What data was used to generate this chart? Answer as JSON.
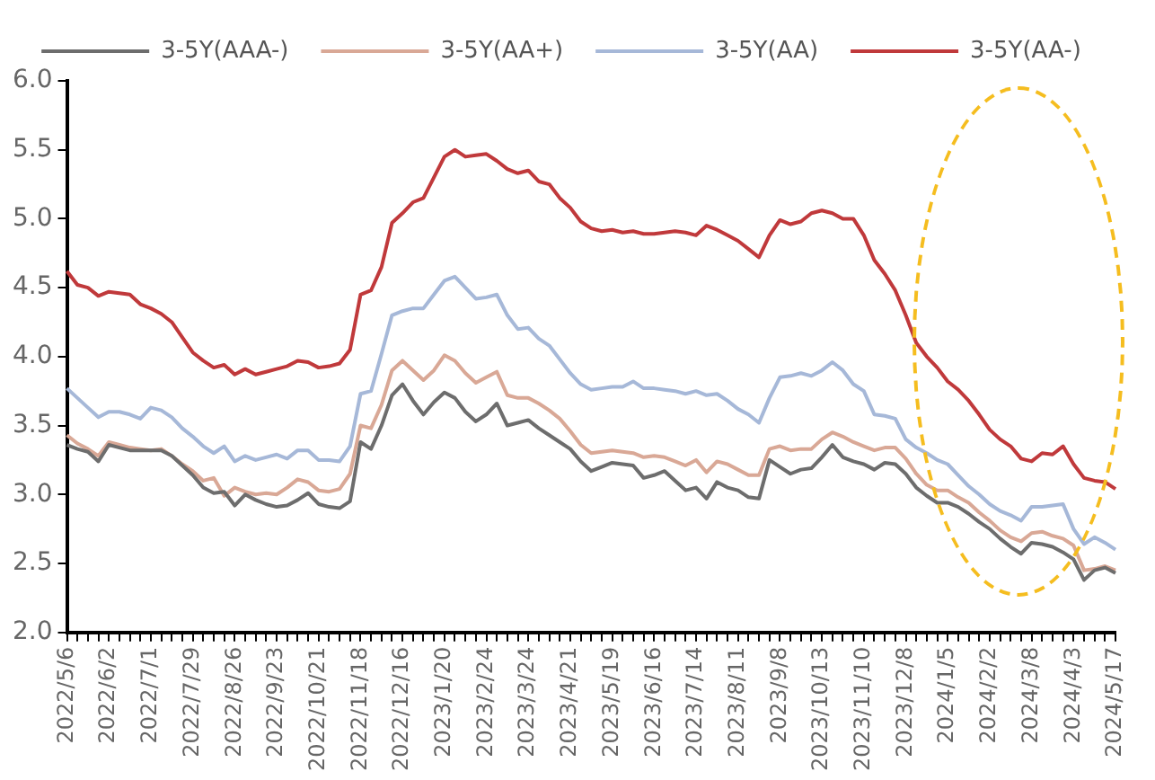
{
  "chart_data": {
    "type": "line",
    "legend": "top",
    "categories": [
      "2022/5/6",
      null,
      null,
      null,
      "2022/6/2",
      null,
      null,
      null,
      "2022/7/1",
      null,
      null,
      null,
      "2022/7/29",
      null,
      null,
      null,
      "2022/8/26",
      null,
      null,
      null,
      "2022/9/23",
      null,
      null,
      null,
      "2022/10/21",
      null,
      null,
      null,
      "2022/11/18",
      null,
      null,
      null,
      "2022/12/16",
      null,
      null,
      null,
      "2023/1/20",
      null,
      null,
      null,
      "2023/2/24",
      null,
      null,
      null,
      "2023/3/24",
      null,
      null,
      null,
      "2023/4/21",
      null,
      null,
      null,
      "2023/5/19",
      null,
      null,
      null,
      "2023/6/16",
      null,
      null,
      null,
      "2023/7/14",
      null,
      null,
      null,
      "2023/8/11",
      null,
      null,
      null,
      "2023/9/8",
      null,
      null,
      null,
      "2023/10/13",
      null,
      null,
      null,
      "2023/11/10",
      null,
      null,
      null,
      "2023/12/8",
      null,
      null,
      null,
      "2024/1/5",
      null,
      null,
      null,
      "2024/2/2",
      null,
      null,
      null,
      "2024/3/8",
      null,
      null,
      null,
      "2024/4/3",
      null,
      null,
      null,
      "2024/5/17"
    ],
    "ylim": [
      2,
      6
    ],
    "yticks": [
      {
        "value": 2,
        "label": "2.0"
      },
      {
        "value": 2.5,
        "label": "2.5"
      },
      {
        "value": 3,
        "label": "3.0"
      },
      {
        "value": 3.5,
        "label": "3.5"
      },
      {
        "value": 4,
        "label": "4.0"
      },
      {
        "value": 4.5,
        "label": "4.5"
      },
      {
        "value": 5,
        "label": "5.0"
      },
      {
        "value": 5.5,
        "label": "5.5"
      },
      {
        "value": 6,
        "label": "6.0"
      }
    ],
    "series": [
      {
        "name": "3-5Y(AAA-)",
        "color": "#6d6d6d",
        "values": [
          3.36,
          3.33,
          3.31,
          3.24,
          3.36,
          3.34,
          3.32,
          3.32,
          3.32,
          3.32,
          3.28,
          3.21,
          3.14,
          3.05,
          3.01,
          3.02,
          2.92,
          3.0,
          2.96,
          2.93,
          2.91,
          2.92,
          2.96,
          3.01,
          2.93,
          2.91,
          2.9,
          2.95,
          3.38,
          3.33,
          3.5,
          3.72,
          3.8,
          3.68,
          3.58,
          3.67,
          3.74,
          3.7,
          3.6,
          3.53,
          3.58,
          3.66,
          3.5,
          3.52,
          3.54,
          3.48,
          3.43,
          3.38,
          3.33,
          3.24,
          3.17,
          3.2,
          3.23,
          3.22,
          3.21,
          3.12,
          3.14,
          3.17,
          3.1,
          3.03,
          3.05,
          2.97,
          3.09,
          3.05,
          3.03,
          2.98,
          2.97,
          3.25,
          3.2,
          3.15,
          3.18,
          3.19,
          3.27,
          3.36,
          3.27,
          3.24,
          3.22,
          3.18,
          3.23,
          3.22,
          3.15,
          3.05,
          2.99,
          2.94,
          2.94,
          2.91,
          2.86,
          2.8,
          2.75,
          2.68,
          2.62,
          2.57,
          2.65,
          2.64,
          2.62,
          2.58,
          2.53,
          2.38,
          2.45,
          2.47,
          2.43
        ]
      },
      {
        "name": "3-5Y(AA+)",
        "color": "#d9a896",
        "values": [
          3.43,
          3.37,
          3.33,
          3.28,
          3.38,
          3.36,
          3.34,
          3.33,
          3.32,
          3.33,
          3.28,
          3.22,
          3.17,
          3.1,
          3.12,
          2.99,
          3.05,
          3.02,
          3.0,
          3.01,
          3.0,
          3.05,
          3.11,
          3.09,
          3.03,
          3.02,
          3.04,
          3.15,
          3.5,
          3.48,
          3.65,
          3.9,
          3.97,
          3.9,
          3.83,
          3.9,
          4.01,
          3.97,
          3.88,
          3.81,
          3.85,
          3.89,
          3.72,
          3.7,
          3.7,
          3.66,
          3.61,
          3.55,
          3.46,
          3.36,
          3.3,
          3.31,
          3.32,
          3.31,
          3.3,
          3.27,
          3.28,
          3.27,
          3.24,
          3.21,
          3.25,
          3.16,
          3.24,
          3.22,
          3.18,
          3.14,
          3.14,
          3.33,
          3.35,
          3.32,
          3.33,
          3.33,
          3.4,
          3.45,
          3.42,
          3.38,
          3.35,
          3.32,
          3.34,
          3.34,
          3.26,
          3.15,
          3.07,
          3.03,
          3.03,
          2.98,
          2.94,
          2.87,
          2.81,
          2.74,
          2.69,
          2.66,
          2.72,
          2.73,
          2.7,
          2.68,
          2.63,
          2.45,
          2.46,
          2.48,
          2.45
        ]
      },
      {
        "name": "3-5Y(AA)",
        "color": "#a6b8d8",
        "values": [
          3.77,
          3.7,
          3.63,
          3.56,
          3.6,
          3.6,
          3.58,
          3.55,
          3.63,
          3.61,
          3.56,
          3.48,
          3.42,
          3.35,
          3.3,
          3.35,
          3.24,
          3.28,
          3.25,
          3.27,
          3.29,
          3.26,
          3.32,
          3.32,
          3.25,
          3.25,
          3.24,
          3.35,
          3.73,
          3.75,
          4.02,
          4.3,
          4.33,
          4.35,
          4.35,
          4.45,
          4.55,
          4.58,
          4.5,
          4.42,
          4.43,
          4.45,
          4.3,
          4.2,
          4.21,
          4.13,
          4.08,
          3.98,
          3.88,
          3.8,
          3.76,
          3.77,
          3.78,
          3.78,
          3.82,
          3.77,
          3.77,
          3.76,
          3.75,
          3.73,
          3.75,
          3.72,
          3.73,
          3.68,
          3.62,
          3.58,
          3.52,
          3.7,
          3.85,
          3.86,
          3.88,
          3.86,
          3.9,
          3.96,
          3.9,
          3.8,
          3.75,
          3.58,
          3.57,
          3.55,
          3.4,
          3.34,
          3.3,
          3.25,
          3.22,
          3.14,
          3.06,
          3.0,
          2.93,
          2.88,
          2.85,
          2.81,
          2.91,
          2.91,
          2.92,
          2.93,
          2.75,
          2.64,
          2.69,
          2.65,
          2.6
        ]
      },
      {
        "name": "3-5Y(AA-)",
        "color": "#c0393b",
        "values": [
          4.62,
          4.52,
          4.5,
          4.44,
          4.47,
          4.46,
          4.45,
          4.38,
          4.35,
          4.31,
          4.25,
          4.14,
          4.03,
          3.97,
          3.92,
          3.94,
          3.87,
          3.91,
          3.87,
          3.89,
          3.91,
          3.93,
          3.97,
          3.96,
          3.92,
          3.93,
          3.95,
          4.05,
          4.45,
          4.48,
          4.65,
          4.97,
          5.04,
          5.12,
          5.15,
          5.3,
          5.45,
          5.5,
          5.45,
          5.46,
          5.47,
          5.42,
          5.36,
          5.33,
          5.35,
          5.27,
          5.25,
          5.15,
          5.08,
          4.98,
          4.93,
          4.91,
          4.92,
          4.9,
          4.91,
          4.89,
          4.89,
          4.9,
          4.91,
          4.9,
          4.88,
          4.95,
          4.92,
          4.88,
          4.84,
          4.78,
          4.72,
          4.88,
          4.99,
          4.96,
          4.98,
          5.04,
          5.06,
          5.04,
          5.0,
          5.0,
          4.88,
          4.7,
          4.6,
          4.48,
          4.3,
          4.1,
          4.0,
          3.92,
          3.82,
          3.76,
          3.68,
          3.58,
          3.47,
          3.4,
          3.35,
          3.26,
          3.24,
          3.3,
          3.29,
          3.35,
          3.22,
          3.12,
          3.1,
          3.09,
          3.04
        ]
      }
    ]
  }
}
